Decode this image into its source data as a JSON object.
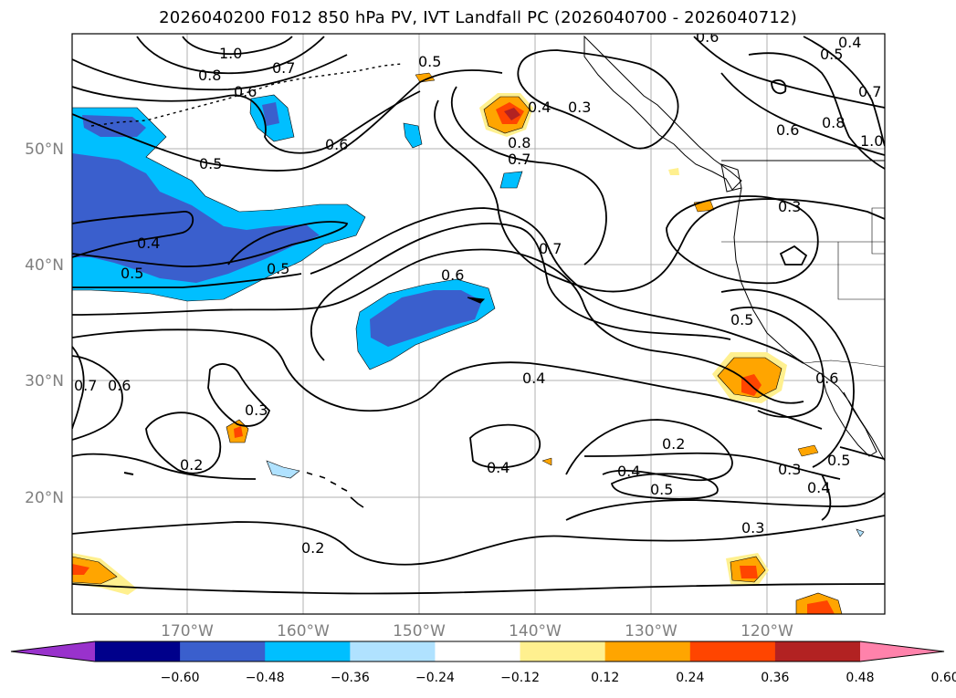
{
  "title": "2026040200 F012 850 hPa PV, IVT Landfall PC (2026040700 - 2026040712)",
  "map": {
    "lat_labels": [
      "50°N",
      "40°N",
      "30°N",
      "20°N"
    ],
    "lon_labels": [
      "170°W",
      "160°W",
      "150°W",
      "140°W",
      "130°W",
      "120°W"
    ]
  },
  "colorbar": {
    "levels": [
      -0.6,
      -0.48,
      -0.36,
      -0.24,
      -0.12,
      0.12,
      0.24,
      0.36,
      0.48,
      0.6
    ],
    "labels": [
      "−0.60",
      "−0.48",
      "−0.36",
      "−0.24",
      "−0.12",
      "0.12",
      "0.24",
      "0.36",
      "0.48",
      "0.60"
    ],
    "colors": [
      "#9932cc",
      "#00008b",
      "#3a5fcd",
      "#00bfff",
      "#b0e2ff",
      "#ffffff",
      "#fff08f",
      "#ffa500",
      "#ff4500",
      "#b22222",
      "#ff82ab"
    ],
    "extend": "both"
  },
  "contour_labels": [
    {
      "text": "1.0"
    },
    {
      "text": "0.8"
    },
    {
      "text": "0.7"
    },
    {
      "text": "0.6"
    },
    {
      "text": "0.5"
    },
    {
      "text": "0.5"
    },
    {
      "text": "0.6"
    },
    {
      "text": "0.4"
    },
    {
      "text": "0.5"
    },
    {
      "text": "0.5"
    },
    {
      "text": "0.4"
    },
    {
      "text": "0.3"
    },
    {
      "text": "0.8"
    },
    {
      "text": "0.7"
    },
    {
      "text": "0.7"
    },
    {
      "text": "0.6"
    },
    {
      "text": "0.6"
    },
    {
      "text": "0.4"
    },
    {
      "text": "0.5"
    },
    {
      "text": "0.7"
    },
    {
      "text": "0.6"
    },
    {
      "text": "0.8"
    },
    {
      "text": "1.0"
    },
    {
      "text": "0.3"
    },
    {
      "text": "0.5"
    },
    {
      "text": "0.6"
    },
    {
      "text": "0.7"
    },
    {
      "text": "0.6"
    },
    {
      "text": "0.3"
    },
    {
      "text": "0.2"
    },
    {
      "text": "0.4"
    },
    {
      "text": "0.4"
    },
    {
      "text": "0.2"
    },
    {
      "text": "0.4"
    },
    {
      "text": "0.5"
    },
    {
      "text": "0.3"
    },
    {
      "text": "0.3"
    },
    {
      "text": "0.5"
    },
    {
      "text": "0.4"
    },
    {
      "text": "0.2"
    }
  ]
}
